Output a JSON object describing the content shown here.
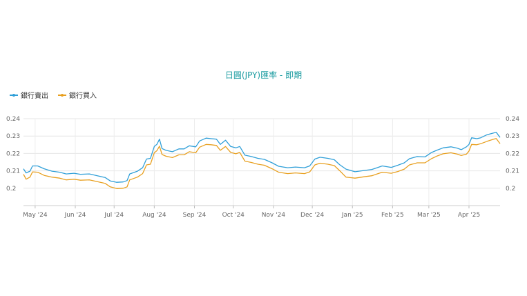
{
  "chart_data": {
    "type": "line",
    "title": "日圓(JPY)匯率 - 即期",
    "x_start": "2024-04-22",
    "x_end": "2025-04-25",
    "x_ticks": [
      {
        "date": "2024-05-01",
        "label": "May '24"
      },
      {
        "date": "2024-06-01",
        "label": "Jun '24"
      },
      {
        "date": "2024-07-01",
        "label": "Jul '24"
      },
      {
        "date": "2024-08-01",
        "label": "Aug '24"
      },
      {
        "date": "2024-09-01",
        "label": "Sep '24"
      },
      {
        "date": "2024-10-01",
        "label": "Oct '24"
      },
      {
        "date": "2024-11-01",
        "label": "Nov '24"
      },
      {
        "date": "2024-12-01",
        "label": "Dec '24"
      },
      {
        "date": "2025-01-01",
        "label": "Jan '25"
      },
      {
        "date": "2025-02-01",
        "label": "Feb '25"
      },
      {
        "date": "2025-03-01",
        "label": "Mar '25"
      },
      {
        "date": "2025-04-01",
        "label": "Apr '25"
      }
    ],
    "ylim": [
      0.19,
      0.24
    ],
    "y_ticks": [
      0.2,
      0.21,
      0.22,
      0.23,
      0.24
    ],
    "y_tick_labels": [
      "0.2",
      "0.21",
      "0.22",
      "0.23",
      "0.24"
    ],
    "grid": true,
    "legend_position": "top-left",
    "series": [
      {
        "name": "銀行賣出",
        "color": "#2f9fd8",
        "points": [
          [
            "2024-04-22",
            0.2112
          ],
          [
            "2024-04-24",
            0.2088
          ],
          [
            "2024-04-27",
            0.2098
          ],
          [
            "2024-04-29",
            0.2128
          ],
          [
            "2024-05-03",
            0.2128
          ],
          [
            "2024-05-08",
            0.2112
          ],
          [
            "2024-05-14",
            0.2098
          ],
          [
            "2024-05-20",
            0.2092
          ],
          [
            "2024-05-25",
            0.2082
          ],
          [
            "2024-05-31",
            0.2086
          ],
          [
            "2024-06-05",
            0.208
          ],
          [
            "2024-06-12",
            0.2082
          ],
          [
            "2024-06-18",
            0.2072
          ],
          [
            "2024-06-24",
            0.2062
          ],
          [
            "2024-06-28",
            0.2042
          ],
          [
            "2024-07-03",
            0.2034
          ],
          [
            "2024-07-08",
            0.2036
          ],
          [
            "2024-07-11",
            0.2044
          ],
          [
            "2024-07-13",
            0.2082
          ],
          [
            "2024-07-16",
            0.209
          ],
          [
            "2024-07-19",
            0.2098
          ],
          [
            "2024-07-23",
            0.2118
          ],
          [
            "2024-07-26",
            0.2168
          ],
          [
            "2024-07-29",
            0.2172
          ],
          [
            "2024-08-01",
            0.224
          ],
          [
            "2024-08-03",
            0.2252
          ],
          [
            "2024-08-05",
            0.2282
          ],
          [
            "2024-08-07",
            0.2228
          ],
          [
            "2024-08-10",
            0.2218
          ],
          [
            "2024-08-15",
            0.221
          ],
          [
            "2024-08-20",
            0.2226
          ],
          [
            "2024-08-24",
            0.2226
          ],
          [
            "2024-08-28",
            0.2244
          ],
          [
            "2024-09-02",
            0.2238
          ],
          [
            "2024-09-05",
            0.2272
          ],
          [
            "2024-09-10",
            0.2288
          ],
          [
            "2024-09-14",
            0.2285
          ],
          [
            "2024-09-18",
            0.2282
          ],
          [
            "2024-09-21",
            0.2252
          ],
          [
            "2024-09-25",
            0.2276
          ],
          [
            "2024-09-29",
            0.224
          ],
          [
            "2024-10-03",
            0.2232
          ],
          [
            "2024-10-06",
            0.224
          ],
          [
            "2024-10-10",
            0.219
          ],
          [
            "2024-10-15",
            0.2182
          ],
          [
            "2024-10-20",
            0.2172
          ],
          [
            "2024-10-25",
            0.2166
          ],
          [
            "2024-10-31",
            0.2146
          ],
          [
            "2024-11-05",
            0.2126
          ],
          [
            "2024-11-12",
            0.2118
          ],
          [
            "2024-11-18",
            0.2122
          ],
          [
            "2024-11-25",
            0.2118
          ],
          [
            "2024-11-29",
            0.2128
          ],
          [
            "2024-12-03",
            0.2168
          ],
          [
            "2024-12-07",
            0.2178
          ],
          [
            "2024-12-13",
            0.2172
          ],
          [
            "2024-12-18",
            0.2164
          ],
          [
            "2024-12-22",
            0.2136
          ],
          [
            "2024-12-27",
            0.211
          ],
          [
            "2025-01-03",
            0.2095
          ],
          [
            "2025-01-10",
            0.2102
          ],
          [
            "2025-01-16",
            0.2108
          ],
          [
            "2025-01-20",
            0.2118
          ],
          [
            "2025-01-24",
            0.2128
          ],
          [
            "2025-01-31",
            0.212
          ],
          [
            "2025-02-05",
            0.2132
          ],
          [
            "2025-02-10",
            0.2146
          ],
          [
            "2025-02-14",
            0.217
          ],
          [
            "2025-02-20",
            0.2182
          ],
          [
            "2025-02-26",
            0.218
          ],
          [
            "2025-03-03",
            0.2205
          ],
          [
            "2025-03-07",
            0.2218
          ],
          [
            "2025-03-12",
            0.2232
          ],
          [
            "2025-03-18",
            0.2238
          ],
          [
            "2025-03-23",
            0.223
          ],
          [
            "2025-03-26",
            0.2222
          ],
          [
            "2025-03-30",
            0.2238
          ],
          [
            "2025-04-01",
            0.2252
          ],
          [
            "2025-04-03",
            0.229
          ],
          [
            "2025-04-07",
            0.2285
          ],
          [
            "2025-04-10",
            0.229
          ],
          [
            "2025-04-15",
            0.2308
          ],
          [
            "2025-04-20",
            0.2318
          ],
          [
            "2025-04-22",
            0.2322
          ],
          [
            "2025-04-25",
            0.2292
          ]
        ]
      },
      {
        "name": "銀行買入",
        "color": "#e8a020",
        "points": [
          [
            "2024-04-22",
            0.208
          ],
          [
            "2024-04-24",
            0.2052
          ],
          [
            "2024-04-27",
            0.2064
          ],
          [
            "2024-04-29",
            0.2094
          ],
          [
            "2024-05-03",
            0.2092
          ],
          [
            "2024-05-08",
            0.2074
          ],
          [
            "2024-05-14",
            0.2064
          ],
          [
            "2024-05-20",
            0.2058
          ],
          [
            "2024-05-25",
            0.2048
          ],
          [
            "2024-05-31",
            0.2052
          ],
          [
            "2024-06-05",
            0.2046
          ],
          [
            "2024-06-12",
            0.2048
          ],
          [
            "2024-06-18",
            0.2038
          ],
          [
            "2024-06-24",
            0.2028
          ],
          [
            "2024-06-28",
            0.2008
          ],
          [
            "2024-07-03",
            0.1998
          ],
          [
            "2024-07-08",
            0.2
          ],
          [
            "2024-07-11",
            0.2008
          ],
          [
            "2024-07-13",
            0.2048
          ],
          [
            "2024-07-16",
            0.2056
          ],
          [
            "2024-07-19",
            0.2064
          ],
          [
            "2024-07-23",
            0.2084
          ],
          [
            "2024-07-26",
            0.2134
          ],
          [
            "2024-07-29",
            0.2138
          ],
          [
            "2024-08-01",
            0.2204
          ],
          [
            "2024-08-03",
            0.2216
          ],
          [
            "2024-08-05",
            0.2242
          ],
          [
            "2024-08-07",
            0.2194
          ],
          [
            "2024-08-10",
            0.2184
          ],
          [
            "2024-08-15",
            0.2176
          ],
          [
            "2024-08-20",
            0.2192
          ],
          [
            "2024-08-24",
            0.2192
          ],
          [
            "2024-08-28",
            0.221
          ],
          [
            "2024-09-02",
            0.2204
          ],
          [
            "2024-09-05",
            0.2236
          ],
          [
            "2024-09-10",
            0.2252
          ],
          [
            "2024-09-14",
            0.225
          ],
          [
            "2024-09-18",
            0.2246
          ],
          [
            "2024-09-21",
            0.2218
          ],
          [
            "2024-09-25",
            0.224
          ],
          [
            "2024-09-29",
            0.2206
          ],
          [
            "2024-10-03",
            0.2198
          ],
          [
            "2024-10-06",
            0.2206
          ],
          [
            "2024-10-10",
            0.2156
          ],
          [
            "2024-10-15",
            0.2148
          ],
          [
            "2024-10-20",
            0.2138
          ],
          [
            "2024-10-25",
            0.2132
          ],
          [
            "2024-10-31",
            0.2112
          ],
          [
            "2024-11-05",
            0.2092
          ],
          [
            "2024-11-12",
            0.2084
          ],
          [
            "2024-11-18",
            0.2088
          ],
          [
            "2024-11-25",
            0.2084
          ],
          [
            "2024-11-29",
            0.2094
          ],
          [
            "2024-12-03",
            0.2134
          ],
          [
            "2024-12-07",
            0.2144
          ],
          [
            "2024-12-13",
            0.2138
          ],
          [
            "2024-12-18",
            0.213
          ],
          [
            "2024-12-22",
            0.2102
          ],
          [
            "2024-12-27",
            0.2064
          ],
          [
            "2025-01-03",
            0.2058
          ],
          [
            "2025-01-10",
            0.2066
          ],
          [
            "2025-01-16",
            0.2072
          ],
          [
            "2025-01-20",
            0.2082
          ],
          [
            "2025-01-24",
            0.2092
          ],
          [
            "2025-01-31",
            0.2086
          ],
          [
            "2025-02-05",
            0.2096
          ],
          [
            "2025-02-10",
            0.211
          ],
          [
            "2025-02-14",
            0.2134
          ],
          [
            "2025-02-20",
            0.2146
          ],
          [
            "2025-02-26",
            0.2146
          ],
          [
            "2025-03-03",
            0.217
          ],
          [
            "2025-03-07",
            0.2184
          ],
          [
            "2025-03-12",
            0.2198
          ],
          [
            "2025-03-18",
            0.2204
          ],
          [
            "2025-03-23",
            0.2196
          ],
          [
            "2025-03-26",
            0.2188
          ],
          [
            "2025-03-30",
            0.2196
          ],
          [
            "2025-04-01",
            0.2214
          ],
          [
            "2025-04-03",
            0.2252
          ],
          [
            "2025-04-07",
            0.225
          ],
          [
            "2025-04-10",
            0.2256
          ],
          [
            "2025-04-15",
            0.227
          ],
          [
            "2025-04-20",
            0.2282
          ],
          [
            "2025-04-22",
            0.2286
          ],
          [
            "2025-04-25",
            0.2256
          ]
        ]
      }
    ]
  }
}
